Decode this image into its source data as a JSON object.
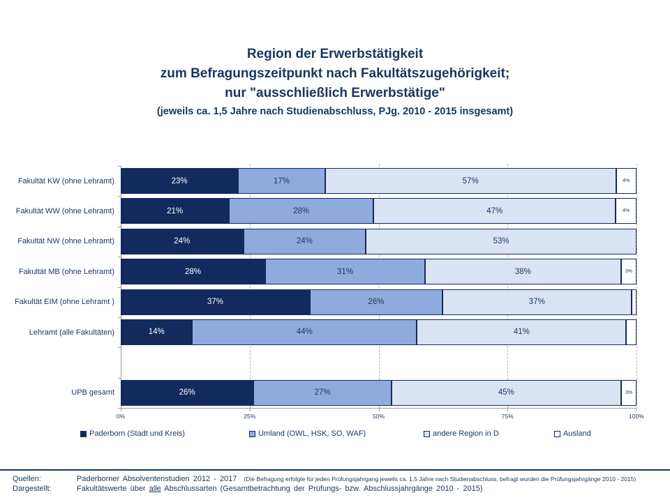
{
  "title": {
    "line1": "Region der Erwerbstätigkeit",
    "line2": "zum Befragungszeitpunkt nach Fakultätszugehörigkeit;",
    "line3": "nur \"ausschließlich Erwerbstätige\"",
    "line4": "(jeweils ca. 1,5 Jahre nach Studienabschluss, PJg. 2010 - 2015 insgesamt)"
  },
  "chart_data": {
    "type": "bar",
    "orientation": "horizontal_stacked",
    "unit": "%",
    "title": "Region der Erwerbstätigkeit zum Befragungszeitpunkt nach Fakultätszugehörigkeit; nur \"ausschließlich Erwerbstätige\" (jeweils ca. 1,5 Jahre nach Studienabschluss, PJg. 2010 - 2015 insgesamt)",
    "categories": [
      "Fakultät KW (ohne Lehramt)",
      "Fakultät WW (ohne Lehramt)",
      "Fakultät NW (ohne Lehramt)",
      "Fakultät MB (ohne Lehramt)",
      "Fakultät EIM (ohne Lehramt )",
      "Lehramt (alle Fakultäten)",
      "UPB gesamt"
    ],
    "series": [
      {
        "name": "Paderborn (Stadt und Kreis)",
        "slug": "paderborn",
        "color": "#122A5E",
        "values": [
          23,
          21,
          24,
          28,
          37,
          14,
          26
        ]
      },
      {
        "name": "Umland (OWL, HSK, SO, WAF)",
        "slug": "umland",
        "color": "#8FAADC",
        "values": [
          17,
          28,
          24,
          31,
          26,
          44,
          27
        ]
      },
      {
        "name": "andere Region in D",
        "slug": "andere-region",
        "color": "#DAE3F3",
        "values": [
          57,
          47,
          53,
          38,
          37,
          41,
          45
        ]
      },
      {
        "name": "Ausland",
        "slug": "ausland",
        "color": "#FFFFFF",
        "values": [
          4,
          4,
          0,
          3,
          1,
          2,
          3
        ]
      }
    ],
    "rows": [
      {
        "category": "Fakultät KW (ohne Lehramt)",
        "values": [
          23,
          17,
          57,
          4
        ],
        "labels": [
          "23%",
          "17%",
          "57%",
          "4%"
        ],
        "spacer": false
      },
      {
        "category": "Fakultät WW (ohne Lehramt)",
        "values": [
          21,
          28,
          47,
          4
        ],
        "labels": [
          "21%",
          "28%",
          "47%",
          "4%"
        ],
        "spacer": false
      },
      {
        "category": "Fakultät NW (ohne Lehramt)",
        "values": [
          24,
          24,
          53,
          0
        ],
        "labels": [
          "24%",
          "24%",
          "53%",
          ""
        ],
        "spacer": false
      },
      {
        "category": "Fakultät MB (ohne Lehramt)",
        "values": [
          28,
          31,
          38,
          3
        ],
        "labels": [
          "28%",
          "31%",
          "38%",
          "3%"
        ],
        "spacer": false
      },
      {
        "category": "Fakultät EIM (ohne Lehramt )",
        "values": [
          37,
          26,
          37,
          1
        ],
        "labels": [
          "37%",
          "26%",
          "37%",
          ""
        ],
        "spacer": false
      },
      {
        "category": "Lehramt (alle Fakultäten)",
        "values": [
          14,
          44,
          41,
          2
        ],
        "labels": [
          "14%",
          "44%",
          "41%",
          ""
        ],
        "spacer": false
      },
      {
        "category": "",
        "values": [],
        "labels": [],
        "spacer": true
      },
      {
        "category": "UPB gesamt",
        "values": [
          26,
          27,
          45,
          3
        ],
        "labels": [
          "26%",
          "27%",
          "45%",
          "3%"
        ],
        "spacer": false
      }
    ],
    "x_axis": {
      "tick_values": [
        0,
        25,
        50,
        75,
        100
      ],
      "tick_labels": [
        "0%",
        "25%",
        "50%",
        "75%",
        "100%"
      ],
      "range": [
        0,
        100
      ],
      "gridlines": "dashed vertical at 25/50/75/100"
    },
    "legend_position": "bottom"
  },
  "legend": {
    "items": [
      {
        "label": "Paderborn (Stadt und Kreis)",
        "color": "#122A5E"
      },
      {
        "label": "Umland (OWL, HSK, SO, WAF)",
        "color": "#8FAADC"
      },
      {
        "label": "andere Region in D",
        "color": "#DAE3F3"
      },
      {
        "label": "Ausland",
        "color": "#FFFFFF"
      }
    ]
  },
  "footer": {
    "sources_label": "Quellen:",
    "sources_value": "Paderborner Absolventenstudien 2012 - 2017",
    "sources_note": "(Die Befragung erfolgte für jeden Prüfungsjahrgang jeweils ca. 1,5 Jahre nach Studienabschluss, befragt wurden die Prüfungsjahrgänge 2010 - 2015)",
    "shown_label": "Dargestellt:",
    "shown_prefix": "Fakultätswerte über ",
    "shown_underlined": "alle",
    "shown_suffix": " Abschlussarten (Gesamtbetrachtung der Prüfungs- bzw. Abschlussjahrgänge 2010 - 2015)"
  },
  "colors": {
    "accent_text": "#17365D",
    "bar_border": "#122A5E",
    "axis": "#9b9b9b",
    "gridline": "#b3b3b3"
  }
}
